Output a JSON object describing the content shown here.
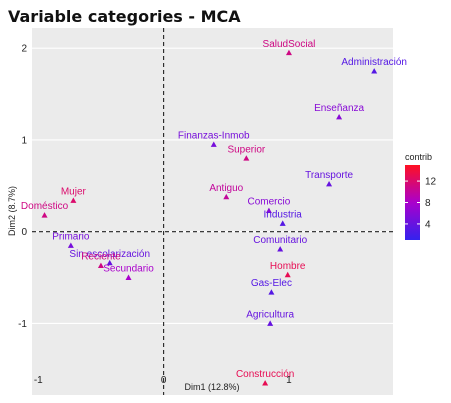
{
  "chart_data": {
    "type": "scatter",
    "title": "Variable categories - MCA",
    "xlabel": "Dim1 (12.8%)",
    "ylabel": "Dim2 (8.7%)",
    "xlim": [
      -1.05,
      1.83
    ],
    "ylim": [
      -1.78,
      2.22
    ],
    "xticks": [
      -1,
      0,
      1
    ],
    "yticks": [
      -1,
      0,
      1,
      2
    ],
    "grid": "horizontal white lines on grey background",
    "reference_lines": "dashed lines at x=0 and y=0",
    "legend": {
      "title": "contrib",
      "ticks": [
        4,
        8,
        12
      ],
      "range": [
        1,
        15
      ],
      "low_color": "#3322ee",
      "mid_color": "#aa00cc",
      "high_color": "#ff1122",
      "placement": "right"
    },
    "points": [
      {
        "label": "SaludSocial",
        "x": 1.0,
        "y": 1.95,
        "contrib": 11
      },
      {
        "label": "Administración",
        "x": 1.68,
        "y": 1.75,
        "contrib": 3
      },
      {
        "label": "Enseñanza",
        "x": 1.4,
        "y": 1.25,
        "contrib": 6
      },
      {
        "label": "Finanzas-Inmob",
        "x": 0.4,
        "y": 0.95,
        "contrib": 5
      },
      {
        "label": "Superior",
        "x": 0.66,
        "y": 0.8,
        "contrib": 11
      },
      {
        "label": "Antiguo",
        "x": 0.5,
        "y": 0.38,
        "contrib": 10
      },
      {
        "label": "Transporte",
        "x": 1.32,
        "y": 0.52,
        "contrib": 4
      },
      {
        "label": "Comercio",
        "x": 0.84,
        "y": 0.23,
        "contrib": 6
      },
      {
        "label": "Industria",
        "x": 0.95,
        "y": 0.09,
        "contrib": 3
      },
      {
        "label": "Comunitario",
        "x": 0.93,
        "y": -0.19,
        "contrib": 4
      },
      {
        "label": "Hombre",
        "x": 0.99,
        "y": -0.47,
        "contrib": 13
      },
      {
        "label": "Gas-Elec",
        "x": 0.86,
        "y": -0.66,
        "contrib": 3
      },
      {
        "label": "Agricultura",
        "x": 0.85,
        "y": -1.0,
        "contrib": 4
      },
      {
        "label": "Construcción",
        "x": 0.81,
        "y": -1.65,
        "contrib": 13
      },
      {
        "label": "Mujer",
        "x": -0.72,
        "y": 0.34,
        "contrib": 12
      },
      {
        "label": "Doméstico",
        "x": -0.95,
        "y": 0.18,
        "contrib": 11
      },
      {
        "label": "Primario",
        "x": -0.74,
        "y": -0.15,
        "contrib": 5
      },
      {
        "label": "Sin escolarización",
        "x": -0.43,
        "y": -0.34,
        "contrib": 4
      },
      {
        "label": "Reciente",
        "x": -0.5,
        "y": -0.37,
        "contrib": 11
      },
      {
        "label": "Secundario",
        "x": -0.28,
        "y": -0.5,
        "contrib": 8
      }
    ]
  }
}
